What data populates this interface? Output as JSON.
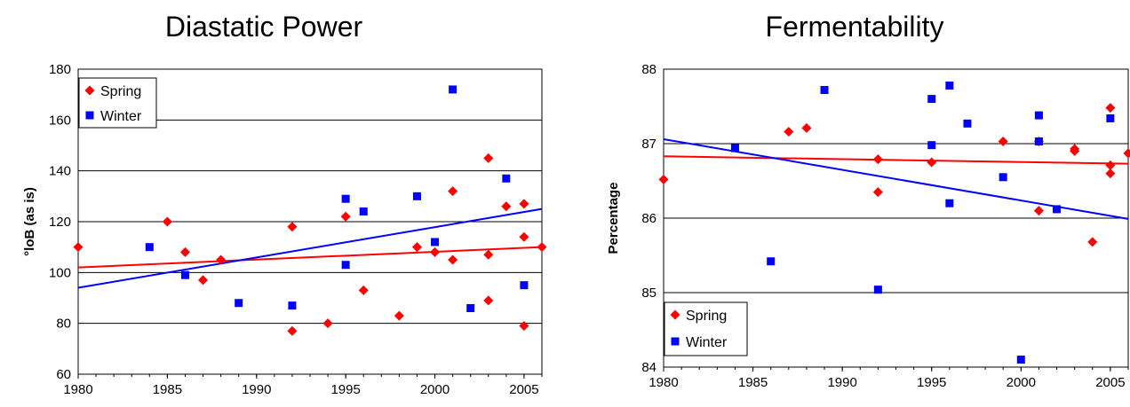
{
  "chart_data": [
    {
      "type": "scatter",
      "title": "Diastatic Power",
      "xlabel": "",
      "ylabel": "°loB (as is)",
      "xlim": [
        1980,
        2006
      ],
      "ylim": [
        60,
        180
      ],
      "xticks": [
        "1980",
        "1985",
        "1990",
        "1995",
        "2000",
        "2005"
      ],
      "yticks": [
        "60",
        "80",
        "100",
        "120",
        "140",
        "160",
        "180"
      ],
      "grid": "horizontal",
      "legend_position": "top-left",
      "series": [
        {
          "name": "Spring",
          "marker": "diamond",
          "color": "#ff0000",
          "points": [
            [
              1980,
              110
            ],
            [
              1985,
              120
            ],
            [
              1986,
              108
            ],
            [
              1987,
              97
            ],
            [
              1988,
              105
            ],
            [
              1992,
              118
            ],
            [
              1992,
              77
            ],
            [
              1994,
              80
            ],
            [
              1995,
              122
            ],
            [
              1996,
              93
            ],
            [
              1998,
              83
            ],
            [
              1999,
              110
            ],
            [
              2000,
              108
            ],
            [
              2001,
              132
            ],
            [
              2001,
              105
            ],
            [
              2003,
              145
            ],
            [
              2003,
              107
            ],
            [
              2003,
              89
            ],
            [
              2004,
              126
            ],
            [
              2005,
              127
            ],
            [
              2005,
              114
            ],
            [
              2005,
              79
            ],
            [
              2006,
              110
            ]
          ],
          "trend": [
            [
              1980,
              102
            ],
            [
              2006,
              110
            ]
          ]
        },
        {
          "name": "Winter",
          "marker": "square",
          "color": "#0000ff",
          "points": [
            [
              1984,
              110
            ],
            [
              1986,
              99
            ],
            [
              1989,
              88
            ],
            [
              1992,
              87
            ],
            [
              1995,
              129
            ],
            [
              1995,
              103
            ],
            [
              1996,
              124
            ],
            [
              1999,
              130
            ],
            [
              2000,
              112
            ],
            [
              2001,
              172
            ],
            [
              2002,
              86
            ],
            [
              2004,
              137
            ],
            [
              2005,
              95
            ]
          ],
          "trend": [
            [
              1980,
              94
            ],
            [
              2006,
              125
            ]
          ]
        }
      ]
    },
    {
      "type": "scatter",
      "title": "Fermentability",
      "xlabel": "",
      "ylabel": "Percentage",
      "xlim": [
        1980,
        2006
      ],
      "ylim": [
        84,
        88
      ],
      "xticks": [
        "1980",
        "1985",
        "1990",
        "1995",
        "2000",
        "2005"
      ],
      "yticks": [
        "84",
        "85",
        "86",
        "87",
        "88"
      ],
      "grid": "horizontal",
      "legend_position": "bottom-left",
      "series": [
        {
          "name": "Spring",
          "marker": "diamond",
          "color": "#ff0000",
          "points": [
            [
              1980,
              86.52
            ],
            [
              1987,
              87.16
            ],
            [
              1988,
              87.21
            ],
            [
              1992,
              86.79
            ],
            [
              1992,
              86.35
            ],
            [
              1995,
              86.75
            ],
            [
              1999,
              87.03
            ],
            [
              2001,
              87.03
            ],
            [
              2001,
              86.1
            ],
            [
              2003,
              86.93
            ],
            [
              2003,
              86.9
            ],
            [
              2004,
              85.68
            ],
            [
              2005,
              87.48
            ],
            [
              2005,
              86.71
            ],
            [
              2005,
              86.6
            ],
            [
              2006,
              86.87
            ]
          ],
          "trend": [
            [
              1980,
              86.83
            ],
            [
              2006,
              86.73
            ]
          ]
        },
        {
          "name": "Winter",
          "marker": "square",
          "color": "#0000ff",
          "points": [
            [
              1984,
              86.94
            ],
            [
              1986,
              85.42
            ],
            [
              1989,
              87.72
            ],
            [
              1992,
              85.04
            ],
            [
              1995,
              87.6
            ],
            [
              1995,
              86.98
            ],
            [
              1996,
              87.78
            ],
            [
              1996,
              86.2
            ],
            [
              1997,
              87.27
            ],
            [
              1999,
              86.55
            ],
            [
              2000,
              84.1
            ],
            [
              2001,
              87.38
            ],
            [
              2001,
              87.03
            ],
            [
              2002,
              86.12
            ],
            [
              2005,
              87.34
            ]
          ],
          "trend": [
            [
              1980,
              87.06
            ],
            [
              2006,
              85.99
            ]
          ]
        }
      ]
    }
  ]
}
